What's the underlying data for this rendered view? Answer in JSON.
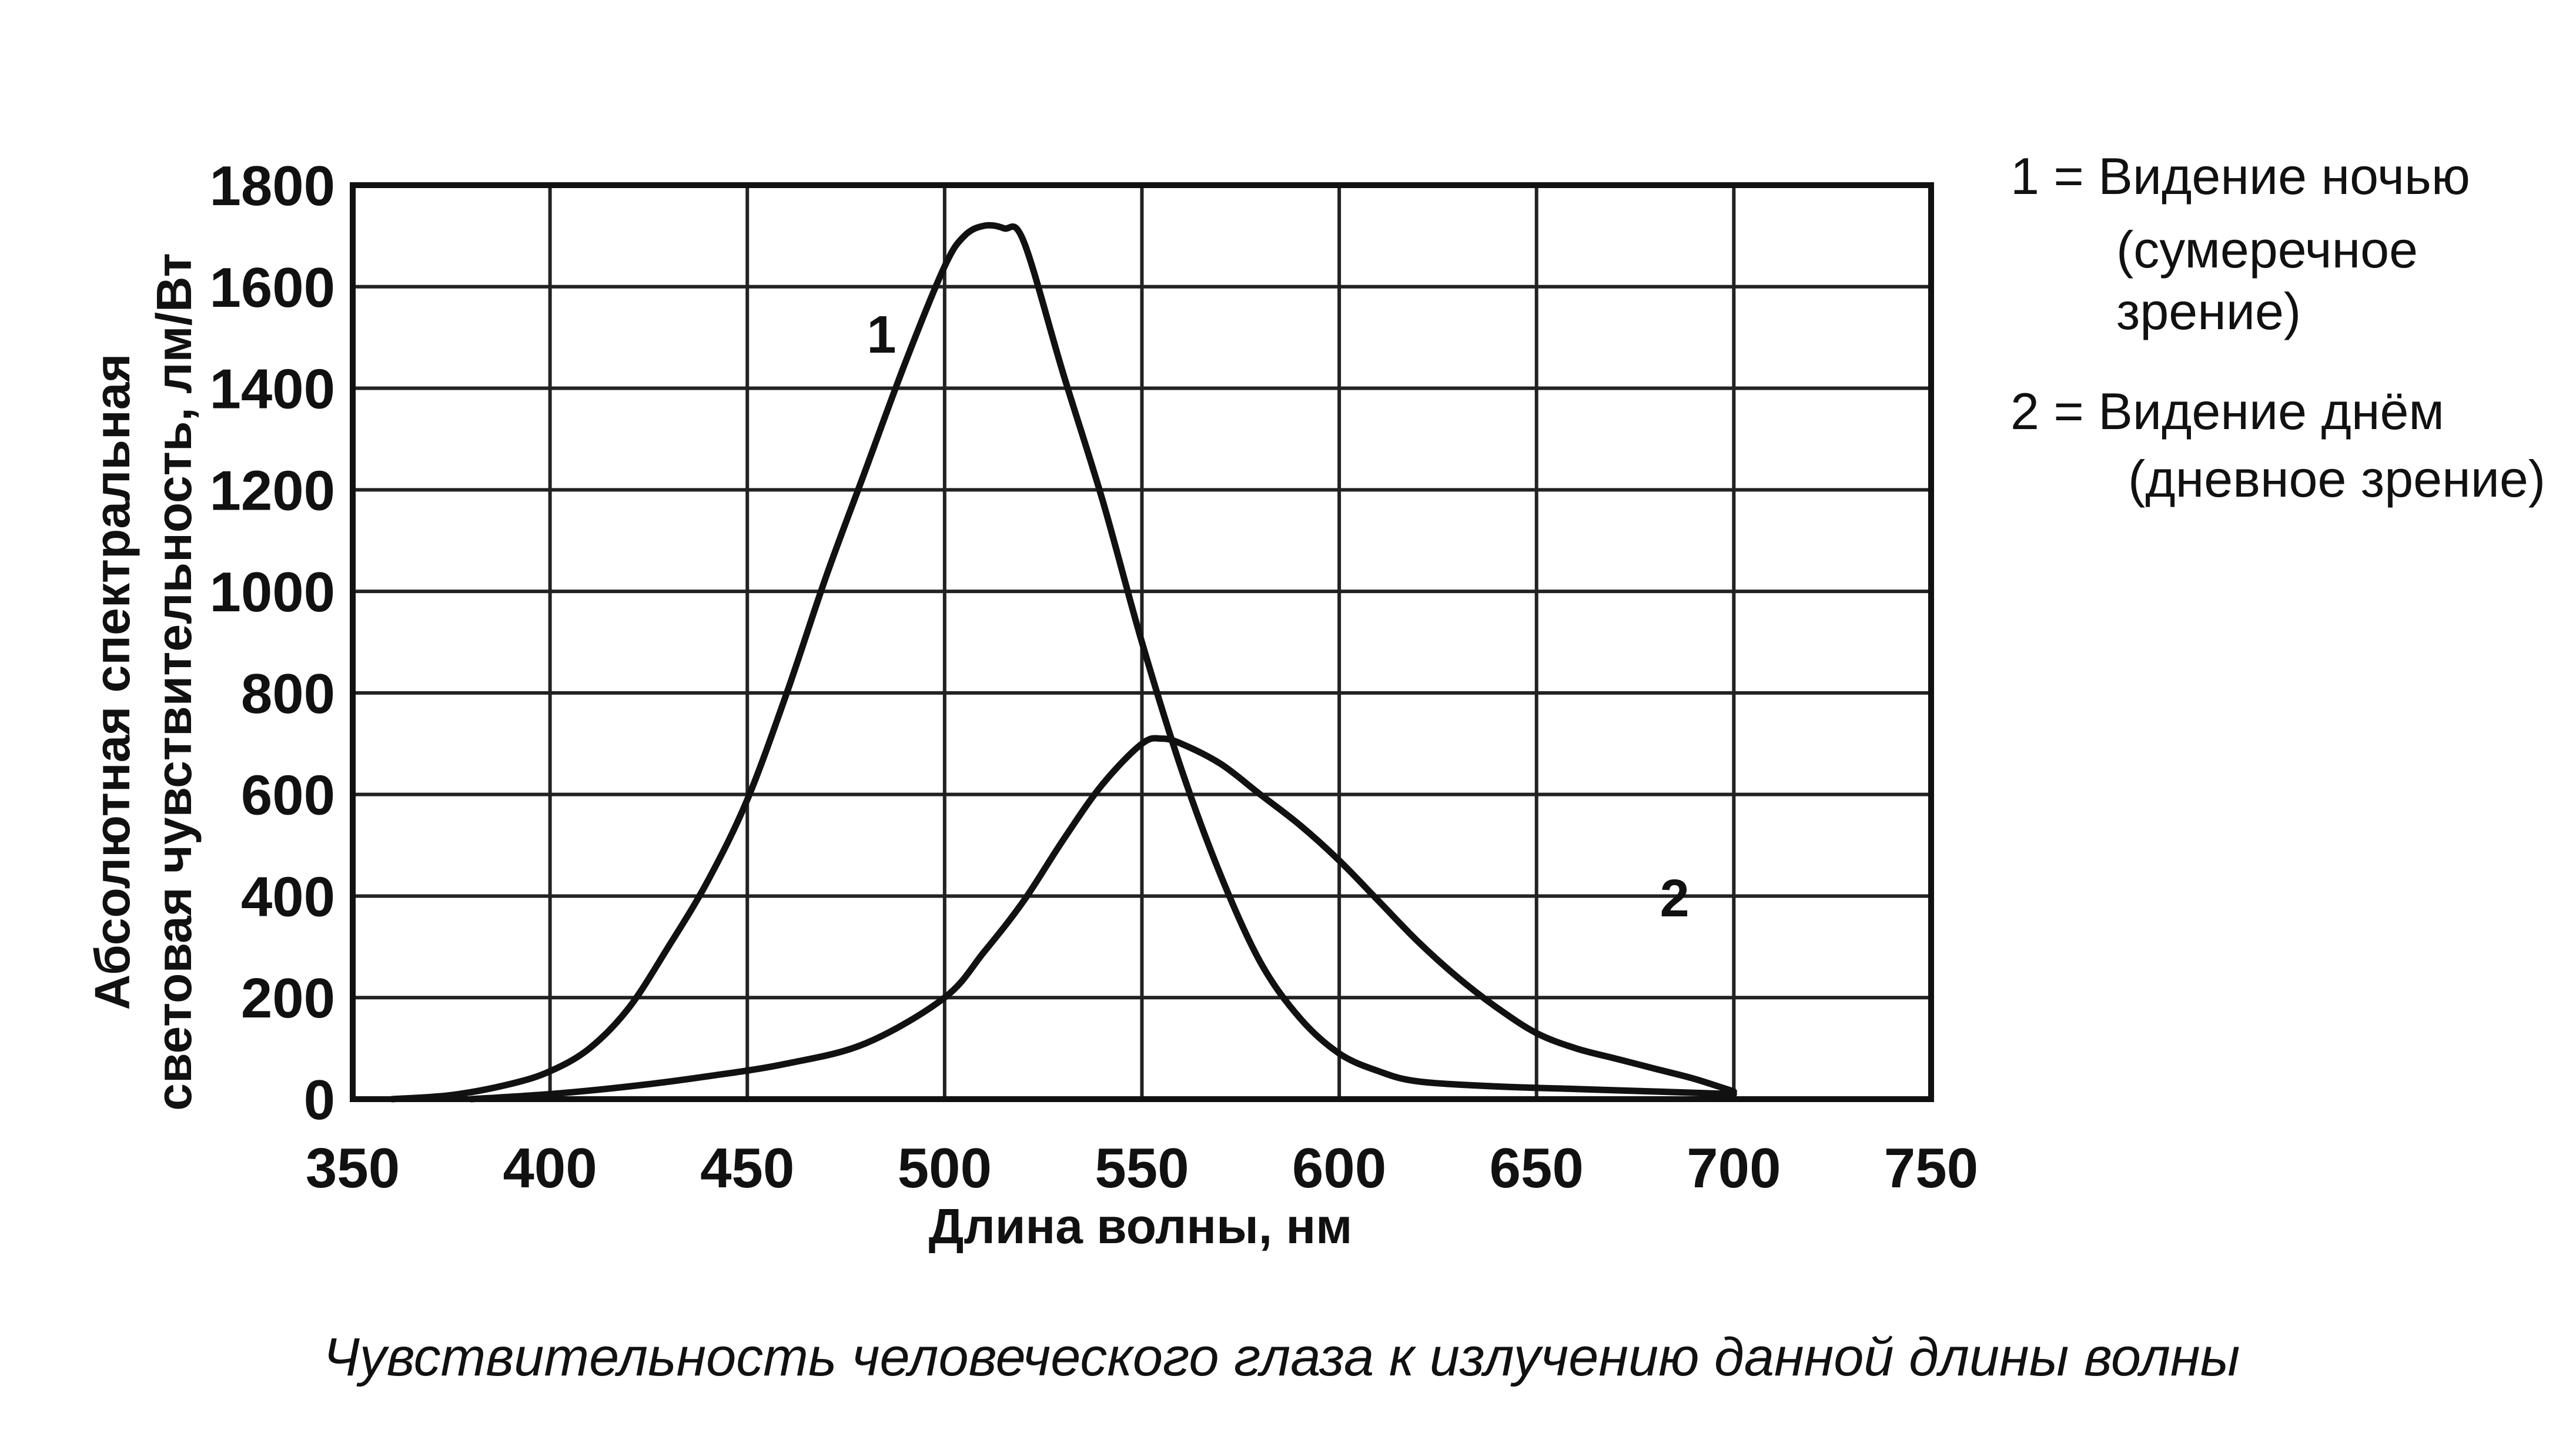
{
  "chart_data": {
    "type": "line",
    "caption": "Чувствительность человеческого глаза к излучению данной длины волны",
    "xlabel": "Длина волны, нм",
    "ylabel_line1": "Абсолютная спектральная",
    "ylabel_line2": "световая чувствительность, лм/Вт",
    "xlim": [
      350,
      750
    ],
    "ylim": [
      0,
      1800
    ],
    "x_ticks": [
      350,
      400,
      450,
      500,
      550,
      600,
      650,
      700,
      750
    ],
    "y_ticks": [
      0,
      200,
      400,
      600,
      800,
      1000,
      1200,
      1400,
      1600,
      1800
    ],
    "grid": true,
    "legend_position": "top-right",
    "legend": [
      {
        "line1": "1 = Видение ночью",
        "line2": "(сумеречное",
        "line3": "зрение)"
      },
      {
        "line1": "2 = Видение днём",
        "line2": "(дневное зрение)"
      }
    ],
    "series": [
      {
        "name": "1",
        "x": [
          360,
          375,
          390,
          400,
          410,
          420,
          430,
          440,
          450,
          460,
          470,
          480,
          490,
          500,
          505,
          510,
          515,
          520,
          530,
          540,
          550,
          560,
          570,
          580,
          590,
          600,
          610,
          620,
          640,
          660,
          680,
          700
        ],
        "y": [
          0,
          8,
          30,
          55,
          100,
          180,
          300,
          430,
          590,
          800,
          1030,
          1240,
          1450,
          1640,
          1700,
          1720,
          1715,
          1690,
          1430,
          1180,
          900,
          650,
          440,
          270,
          160,
          90,
          55,
          35,
          25,
          20,
          15,
          10
        ]
      },
      {
        "name": "2",
        "x": [
          380,
          400,
          420,
          440,
          460,
          480,
          500,
          510,
          520,
          530,
          540,
          550,
          555,
          560,
          570,
          580,
          590,
          600,
          610,
          620,
          630,
          640,
          650,
          660,
          670,
          680,
          690,
          700
        ],
        "y": [
          0,
          10,
          25,
          45,
          70,
          110,
          200,
          290,
          390,
          510,
          620,
          700,
          710,
          700,
          660,
          600,
          540,
          470,
          390,
          310,
          240,
          180,
          130,
          100,
          80,
          60,
          40,
          15
        ]
      }
    ],
    "curve_labels": [
      {
        "text": "1",
        "x": 484,
        "y": 1470
      },
      {
        "text": "2",
        "x": 685,
        "y": 360
      }
    ]
  }
}
